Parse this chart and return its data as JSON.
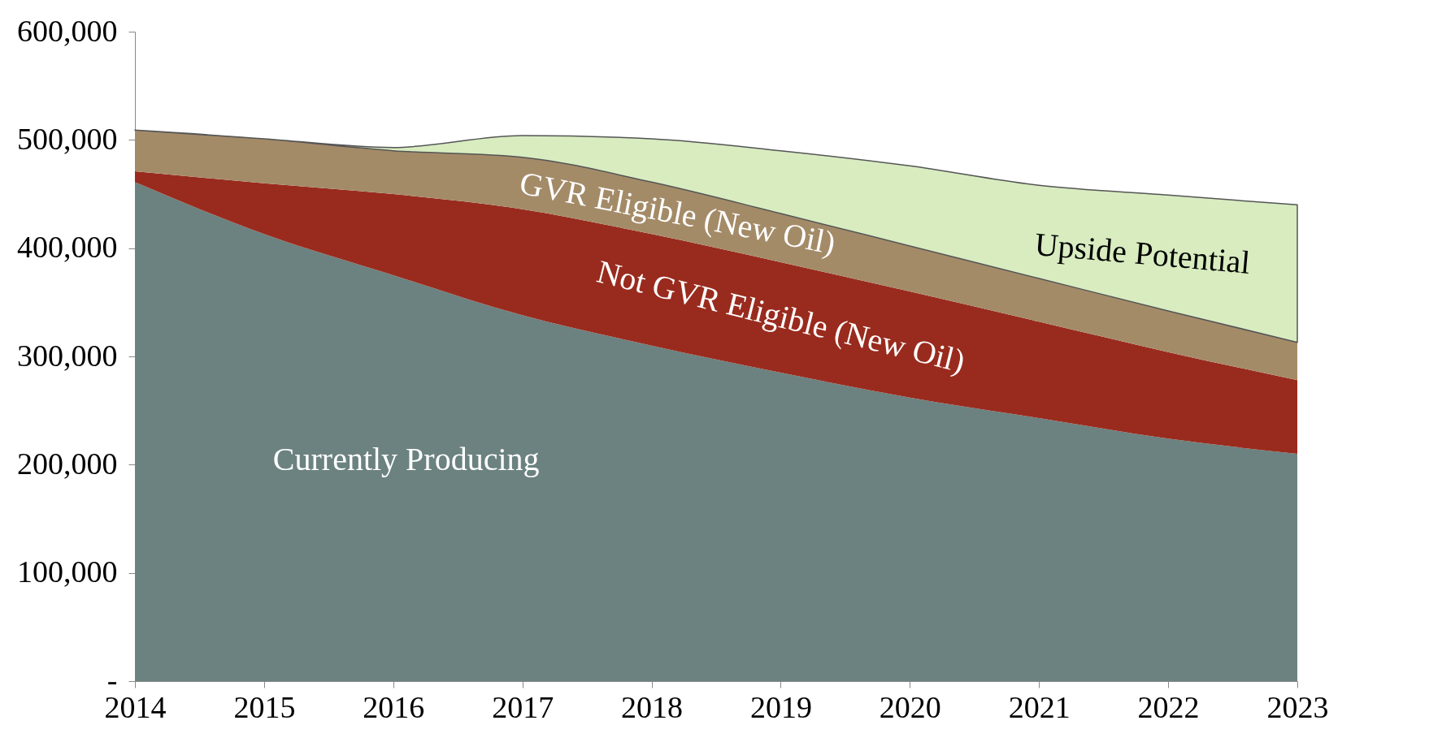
{
  "chart_data": {
    "type": "area",
    "stacked": true,
    "categories": [
      "2014",
      "2015",
      "2016",
      "2017",
      "2018",
      "2019",
      "2020",
      "2021",
      "2022",
      "2023"
    ],
    "ylim": [
      0,
      600000
    ],
    "yticks": [
      {
        "value": 0,
        "label": "-"
      },
      {
        "value": 100000,
        "label": "100,000"
      },
      {
        "value": 200000,
        "label": "200,000"
      },
      {
        "value": 300000,
        "label": "300,000"
      },
      {
        "value": 400000,
        "label": "400,000"
      },
      {
        "value": 500000,
        "label": "500,000"
      },
      {
        "value": 600000,
        "label": "600,000"
      }
    ],
    "series": [
      {
        "name": "Currently Producing",
        "color": "#6b8280",
        "values": [
          461000,
          413000,
          375000,
          338000,
          310000,
          285000,
          262000,
          243000,
          224000,
          210000
        ]
      },
      {
        "name": "Not GVR Eligible (New Oil)",
        "color": "#992b1e",
        "values": [
          10000,
          47000,
          75000,
          98000,
          103000,
          102000,
          98000,
          89000,
          80000,
          68000
        ]
      },
      {
        "name": "GVR Eligible (New Oil)",
        "color": "#a48b68",
        "values": [
          38000,
          41000,
          40000,
          48000,
          48000,
          45000,
          42000,
          40000,
          38000,
          35000
        ]
      },
      {
        "name": "Upside Potential",
        "color": "#d8ecc0",
        "values": [
          0,
          0,
          3000,
          20000,
          40000,
          58000,
          74000,
          86000,
          107000,
          127000
        ]
      }
    ],
    "grid": false
  }
}
